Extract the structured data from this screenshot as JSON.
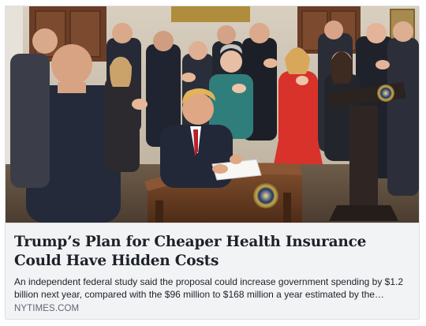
{
  "link_preview": {
    "image_alt": "Photo of a seated man in a dark suit signing a document at a wooden desk bearing a presidential seal, surrounded by a standing crowd applauding in a formal room",
    "headline": "Trump’s Plan for Cheaper Health Insurance Could Have Hidden Costs",
    "summary": "An independent federal study said the proposal could increase government spending by $1.2 billion next year, compared with the $96 million to $168 million a year estimated by the…",
    "domain": "NYTIMES.COM"
  },
  "colors": {
    "caption_background": "#f2f3f5",
    "border": "#dddfe2",
    "headline_text": "#1d2129",
    "domain_text": "#606770"
  }
}
